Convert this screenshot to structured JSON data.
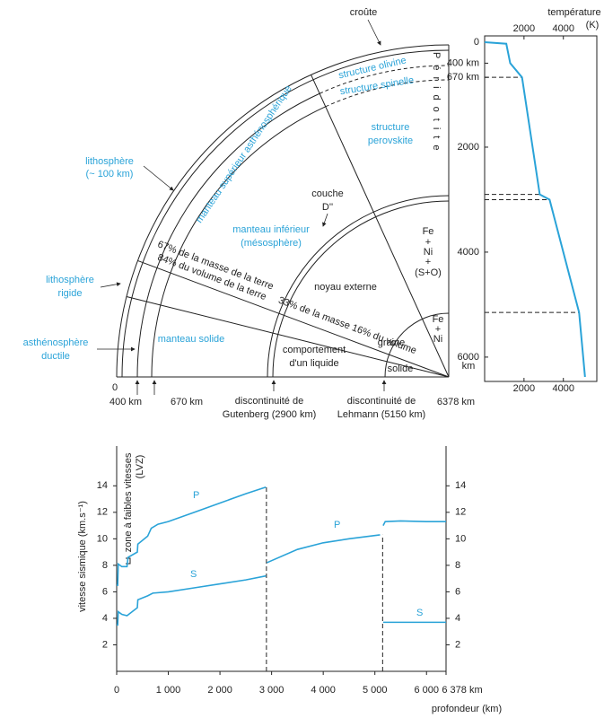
{
  "diagram": {
    "crust": "croûte",
    "olivine": "structure olivine",
    "spinel": "structure spinelle",
    "perovskite": [
      "structure",
      "perovskite"
    ],
    "peridotite": "Péridotite",
    "upper_mantle": "manteau supérieur asthénosphérique",
    "lithosphere": [
      "lithosphère",
      "(~ 100 km)"
    ],
    "layer_d": [
      "couche",
      "D''"
    ],
    "lower_mantle": [
      "manteau inférieur",
      "(mésosphère)"
    ],
    "outer_core_composition": [
      "Fe",
      "+",
      "Ni",
      "+",
      "(S+O)"
    ],
    "mass_volume_mantle": [
      "67% de la masse de la terre",
      "84% du volume de la terre"
    ],
    "outer_core": "noyau externe",
    "mass_volume_core": "33% de la masse 16% du volume",
    "inner_core_composition": [
      "Fe",
      "+",
      "Ni"
    ],
    "inner_core": "graine",
    "liquid": [
      "comportement",
      "d'un liquide"
    ],
    "solid": "solide",
    "solid_mantle": "manteau solide",
    "rigid_lithosphere": [
      "lithosphère",
      "rigide"
    ],
    "ductile_asthenosphere": [
      "asthénosphère",
      "ductile"
    ],
    "depth_labels": [
      "0",
      "400 km",
      "670 km",
      "6378 km"
    ],
    "gutenberg": [
      "discontinuité de",
      "Gutenberg (2900 km)"
    ],
    "lehmann": [
      "discontinuité de",
      "Lehmann (5150 km)"
    ]
  },
  "chart_data": [
    {
      "type": "profile",
      "title": "température",
      "unit": "(K)",
      "y_unit": "km",
      "x": [
        0,
        30,
        400,
        670,
        2900,
        3000,
        5150,
        6378
      ],
      "series": [
        {
          "color": "#2aa3d8",
          "values": [
            0,
            1100,
            1300,
            1900,
            2800,
            3300,
            4800,
            5100
          ]
        }
      ],
      "xlim": [
        0,
        6378
      ],
      "xticks": [
        0,
        {
          "value": 400,
          "label": "400 km"
        },
        {
          "value": 670,
          "label": "670 km"
        },
        2000,
        4000,
        6000
      ],
      "ylim": [
        0,
        5700
      ],
      "yticks": [
        2000,
        4000
      ]
    },
    {
      "type": "line",
      "y_label": "vitesse sismique (km.s⁻¹)",
      "x_label": "profondeur (km)",
      "annotation": [
        "zone à faibles vitesses",
        "(LVZ)"
      ],
      "series": [
        {
          "name": "P",
          "color": "#2aa3d8",
          "x": [
            0,
            20,
            30,
            100,
            200,
            220,
            400,
            410,
            600,
            670,
            800,
            1000,
            1500,
            2000,
            2500,
            2890,
            2900,
            2910,
            3500,
            4000,
            4500,
            5100,
            5150,
            5160,
            5200,
            5500,
            6000,
            6378
          ],
          "values": [
            6.5,
            6.5,
            8.1,
            7.9,
            7.9,
            8.6,
            9.0,
            9.6,
            10.2,
            10.8,
            11.1,
            11.3,
            12.0,
            12.7,
            13.4,
            13.9,
            null,
            8.2,
            9.2,
            9.7,
            10.0,
            10.3,
            null,
            11.0,
            11.3,
            11.35,
            11.3,
            11.3
          ]
        },
        {
          "name": "S",
          "color": "#2aa3d8",
          "x": [
            0,
            20,
            30,
            100,
            200,
            400,
            410,
            600,
            700,
            1000,
            1500,
            2000,
            2500,
            2890,
            2900,
            5150,
            5160,
            6378
          ],
          "values": [
            3.5,
            3.5,
            4.5,
            4.3,
            4.2,
            4.8,
            5.4,
            5.7,
            5.9,
            6.0,
            6.3,
            6.6,
            6.9,
            7.2,
            null,
            null,
            3.7,
            3.7
          ]
        }
      ],
      "xlim": [
        0,
        6378
      ],
      "xticks": [
        0,
        {
          "value": 1000,
          "label": "1 000"
        },
        {
          "value": 2000,
          "label": "2 000"
        },
        {
          "value": 3000,
          "label": "3 000"
        },
        {
          "value": 4000,
          "label": "4 000"
        },
        {
          "value": 5000,
          "label": "5 000"
        },
        {
          "value": 6000,
          "label": "6 000"
        },
        {
          "value": 6378,
          "label": "6 378 km"
        }
      ],
      "ylim": [
        0,
        17
      ],
      "yticks": [
        2,
        4,
        6,
        8,
        10,
        12,
        14
      ]
    }
  ]
}
